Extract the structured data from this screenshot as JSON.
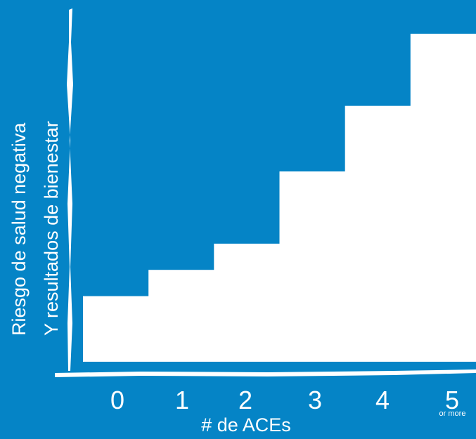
{
  "chart_data": {
    "type": "bar",
    "categories": [
      "0",
      "1",
      "2",
      "3",
      "4",
      "5"
    ],
    "category_sublabels": [
      "",
      "",
      "",
      "",
      "",
      "or more"
    ],
    "values": [
      1,
      1.4,
      1.8,
      2.9,
      3.9,
      5
    ],
    "xlabel": "# de ACEs",
    "ylabel_lines": [
      "Riesgo de salud negativa",
      "Y resultados de bienestar"
    ],
    "ylim": [
      0,
      5
    ],
    "bar_color": "#ffffff",
    "background_color": "#0584c6",
    "grid": false,
    "legend": "none"
  }
}
